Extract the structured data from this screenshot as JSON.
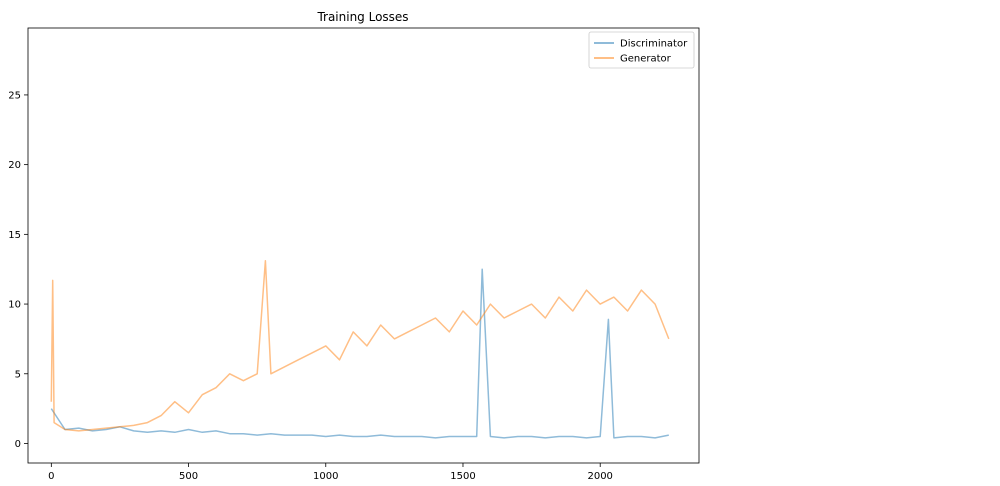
{
  "chart_data": {
    "type": "line",
    "title": "Training Losses",
    "xlabel": "",
    "ylabel": "",
    "xlim": [
      -85,
      2360
    ],
    "ylim": [
      -1.4,
      29.8
    ],
    "x_ticks": [
      0,
      500,
      1000,
      1500,
      2000
    ],
    "y_ticks": [
      0,
      5,
      10,
      15,
      20,
      25
    ],
    "grid": false,
    "legend": "top-right",
    "series": [
      {
        "name": "Discriminator",
        "color": "#1f77b4",
        "alpha": 0.5,
        "x": [
          0,
          50,
          100,
          150,
          200,
          250,
          300,
          350,
          400,
          450,
          500,
          550,
          600,
          650,
          700,
          750,
          800,
          850,
          900,
          950,
          1000,
          1050,
          1100,
          1150,
          1200,
          1250,
          1300,
          1350,
          1400,
          1450,
          1500,
          1550,
          1570,
          1600,
          1650,
          1700,
          1750,
          1800,
          1850,
          1900,
          1950,
          2000,
          2030,
          2050,
          2100,
          2150,
          2200,
          2250
        ],
        "y": [
          2.5,
          1.0,
          1.1,
          0.9,
          1.0,
          1.2,
          0.9,
          0.8,
          0.9,
          0.8,
          1.0,
          0.8,
          0.9,
          0.7,
          0.7,
          0.6,
          0.7,
          0.6,
          0.6,
          0.6,
          0.5,
          0.6,
          0.5,
          0.5,
          0.6,
          0.5,
          0.5,
          0.5,
          0.4,
          0.5,
          0.5,
          0.5,
          12.5,
          0.5,
          0.4,
          0.5,
          0.5,
          0.4,
          0.5,
          0.5,
          0.4,
          0.5,
          8.9,
          0.4,
          0.5,
          0.5,
          0.4,
          0.6
        ]
      },
      {
        "name": "Generator",
        "color": "#ff7f0e",
        "alpha": 0.5,
        "x": [
          0,
          5,
          10,
          50,
          100,
          150,
          200,
          250,
          300,
          350,
          400,
          450,
          500,
          550,
          600,
          650,
          700,
          750,
          780,
          800,
          850,
          900,
          950,
          1000,
          1050,
          1100,
          1150,
          1200,
          1250,
          1300,
          1350,
          1400,
          1450,
          1500,
          1550,
          1600,
          1650,
          1700,
          1750,
          1800,
          1850,
          1900,
          1950,
          2000,
          2050,
          2100,
          2150,
          2200,
          2250
        ],
        "y": [
          3.0,
          11.7,
          1.5,
          1.0,
          0.9,
          1.0,
          1.1,
          1.2,
          1.3,
          1.5,
          2.0,
          3.0,
          2.2,
          3.5,
          4.0,
          5.0,
          4.5,
          5.0,
          13.1,
          5.0,
          5.5,
          6.0,
          6.5,
          7.0,
          6.0,
          8.0,
          7.0,
          8.5,
          7.5,
          8.0,
          8.5,
          9.0,
          8.0,
          9.5,
          8.5,
          10.0,
          9.0,
          9.5,
          10.0,
          9.0,
          10.5,
          9.5,
          11.0,
          10.0,
          10.5,
          9.5,
          11.0,
          10.0,
          7.5
        ]
      }
    ]
  }
}
